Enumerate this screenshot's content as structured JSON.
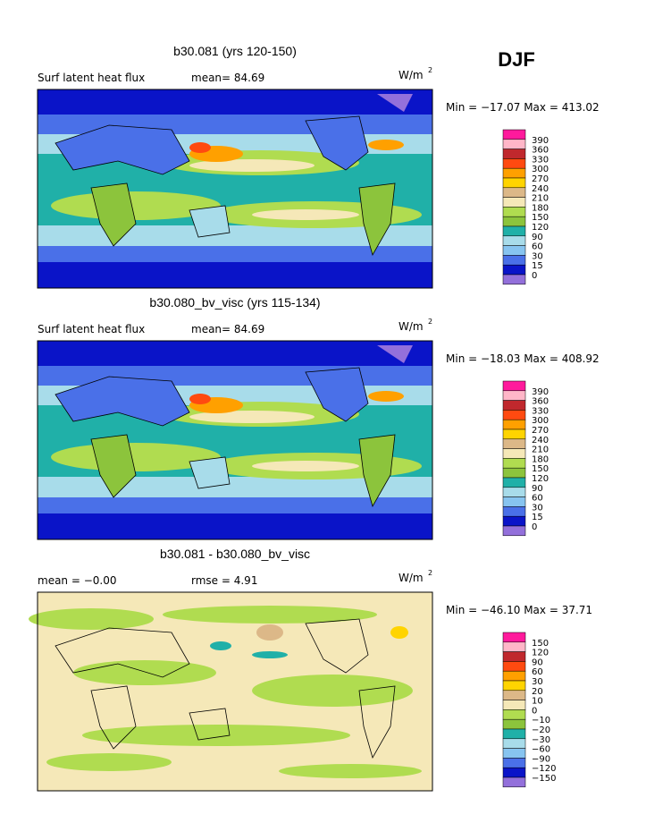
{
  "figure_title": "DJF",
  "panels": [
    {
      "title": "b30.081 (yrs 120-150)",
      "left": "Surf latent heat flux",
      "middle": "mean=  84.69",
      "units": {
        "base": "W/m",
        "exp": "2"
      },
      "minmax": "Min = −17.07 Max = 413.02",
      "colorbar": {
        "labels": [
          "390",
          "360",
          "330",
          "300",
          "270",
          "240",
          "210",
          "180",
          "150",
          "120",
          "90",
          "60",
          "30",
          "15",
          "0"
        ]
      }
    },
    {
      "title": "b30.080_bv_visc (yrs 115-134)",
      "left": "Surf latent heat flux",
      "middle": "mean=  84.69",
      "units": {
        "base": "W/m",
        "exp": "2"
      },
      "minmax": "Min = −18.03 Max = 408.92",
      "colorbar": {
        "labels": [
          "390",
          "360",
          "330",
          "300",
          "270",
          "240",
          "210",
          "180",
          "150",
          "120",
          "90",
          "60",
          "30",
          "15",
          "0"
        ]
      }
    },
    {
      "title": "b30.081 - b30.080_bv_visc",
      "left": "mean =  −0.00",
      "middle": "rmse =   4.91",
      "units": {
        "base": "W/m",
        "exp": "2"
      },
      "minmax": "Min = −46.10 Max =  37.71",
      "colorbar": {
        "labels": [
          "150",
          "120",
          "90",
          "60",
          "30",
          "20",
          "10",
          "0",
          "−10",
          "−20",
          "−30",
          "−60",
          "−90",
          "−120",
          "−150"
        ]
      }
    }
  ],
  "colors": [
    "#ff1a9c",
    "#ffb6c8",
    "#c0282d",
    "#ff4a10",
    "#ffa000",
    "#ffd400",
    "#dcb888",
    "#f5e8b8",
    "#b0dc50",
    "#8cc43c",
    "#20b0a8",
    "#a8dcea",
    "#87c4f0",
    "#4a70e8",
    "#0a14c8",
    "#9370db"
  ]
}
